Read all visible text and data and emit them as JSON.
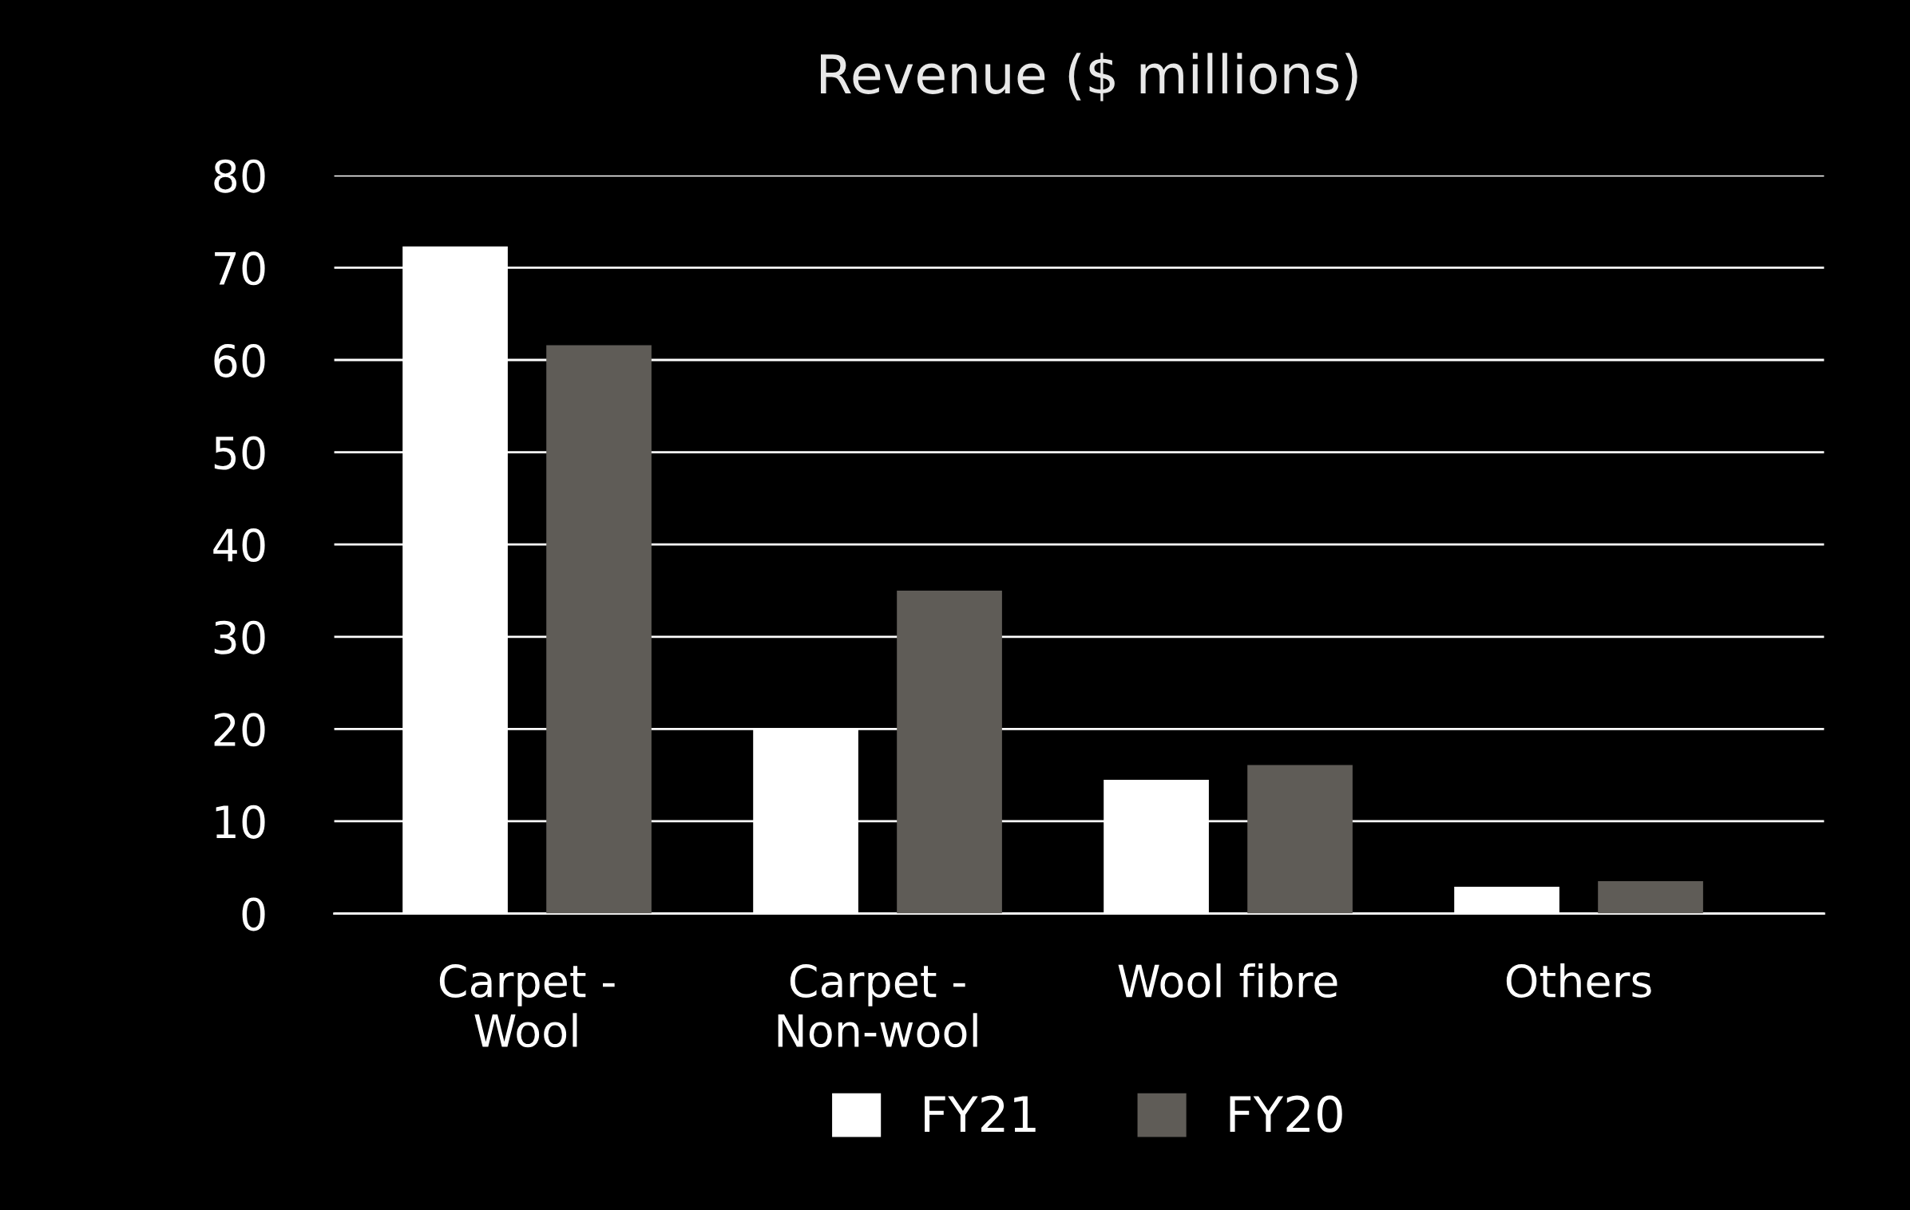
{
  "chart_data": {
    "type": "bar",
    "title": "Revenue ($ millions)",
    "categories": [
      "Carpet -\nWool",
      "Carpet -\nNon-wool",
      "Wool fibre",
      "Others"
    ],
    "series": [
      {
        "name": "FY21",
        "color": "#ffffff",
        "values": [
          72.3,
          20,
          14.5,
          2.9
        ]
      },
      {
        "name": "FY20",
        "color": "#5f5c57",
        "values": [
          61.6,
          35,
          16.1,
          3.5
        ]
      }
    ],
    "ylim": [
      0,
      80
    ],
    "yticks": [
      0,
      10,
      20,
      30,
      40,
      50,
      60,
      70,
      80
    ],
    "grid": "y",
    "legend": "bottom"
  }
}
